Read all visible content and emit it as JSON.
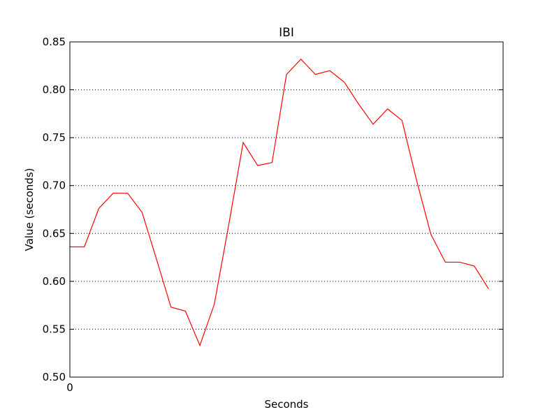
{
  "chart_data": {
    "type": "line",
    "title": "IBI",
    "xlabel": "Seconds",
    "ylabel": "Value (seconds)",
    "x_ticks": [
      "0"
    ],
    "y_ticks": [
      "0.50",
      "0.55",
      "0.60",
      "0.65",
      "0.70",
      "0.75",
      "0.80",
      "0.85"
    ],
    "ylim": [
      0.5,
      0.85
    ],
    "xlim": [
      0,
      30
    ],
    "grid": "horizontal dotted",
    "series": [
      {
        "color": "#ff0000",
        "x": [
          0,
          1,
          2,
          3,
          4,
          5,
          6,
          7,
          8,
          9,
          10,
          11,
          12,
          13,
          14,
          15,
          16,
          17,
          18,
          19,
          20,
          21,
          22,
          23,
          24,
          25,
          26,
          27,
          28,
          29
        ],
        "y": [
          0.636,
          0.636,
          0.676,
          0.692,
          0.692,
          0.672,
          0.623,
          0.573,
          0.569,
          0.533,
          0.576,
          0.659,
          0.745,
          0.721,
          0.724,
          0.816,
          0.832,
          0.816,
          0.82,
          0.808,
          0.785,
          0.764,
          0.78,
          0.768,
          0.706,
          0.649,
          0.62,
          0.62,
          0.616,
          0.592
        ]
      }
    ]
  }
}
